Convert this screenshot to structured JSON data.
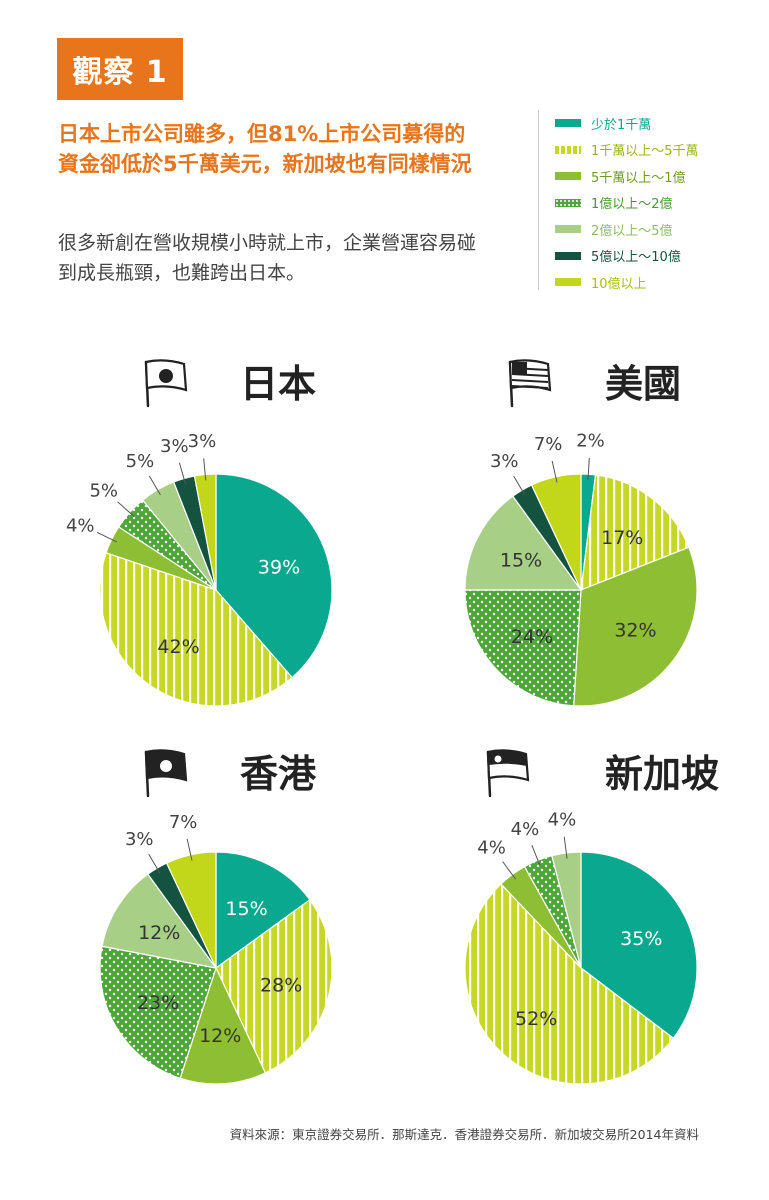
{
  "header": {
    "badge": "觀察 1",
    "headline": "日本上市公司雖多，但81%上市公司募得的資金卻低於5千萬美元，新加坡也有同樣情況",
    "subtext": "很多新創在營收規模小時就上市，企業營運容易碰到成長瓶頸，也難跨出日本。"
  },
  "legend": [
    {
      "label": "少於1千萬",
      "color": "#0aa88f",
      "pattern": "solid",
      "text_color": "#0aa88f"
    },
    {
      "label": "1千萬以上～5千萬",
      "color": "#c6d72a",
      "pattern": "stripes",
      "text_color": "#9bb51e"
    },
    {
      "label": "5千萬以上～1億",
      "color": "#8ebe34",
      "pattern": "solid",
      "text_color": "#6d9c20"
    },
    {
      "label": "1億以上～2億",
      "color": "#4fa63b",
      "pattern": "dots",
      "text_color": "#4a9a35"
    },
    {
      "label": "2億以上～5億",
      "color": "#a8cf86",
      "pattern": "solid",
      "text_color": "#8cbc6a"
    },
    {
      "label": "5億以上～10億",
      "color": "#13533f",
      "pattern": "solid",
      "text_color": "#13533f"
    },
    {
      "label": "10億以上",
      "color": "#c2d61a",
      "pattern": "solid",
      "text_color": "#a8be10"
    }
  ],
  "chart_data": [
    {
      "type": "pie",
      "title": "日本",
      "icon": "japan-flag-icon",
      "values": [
        39,
        42,
        4,
        5,
        5,
        3,
        3
      ]
    },
    {
      "type": "pie",
      "title": "美國",
      "icon": "usa-flag-icon",
      "values": [
        2,
        17,
        32,
        24,
        15,
        3,
        7
      ]
    },
    {
      "type": "pie",
      "title": "香港",
      "icon": "hongkong-flag-icon",
      "values": [
        15,
        28,
        12,
        23,
        12,
        3,
        7
      ]
    },
    {
      "type": "pie",
      "title": "新加坡",
      "icon": "singapore-flag-icon",
      "values": [
        35,
        52,
        4,
        4,
        4,
        0,
        0
      ]
    }
  ],
  "footer": {
    "source": "資料來源：東京證券交易所．那斯達克．香港證券交易所．新加坡交易所2014年資料"
  }
}
